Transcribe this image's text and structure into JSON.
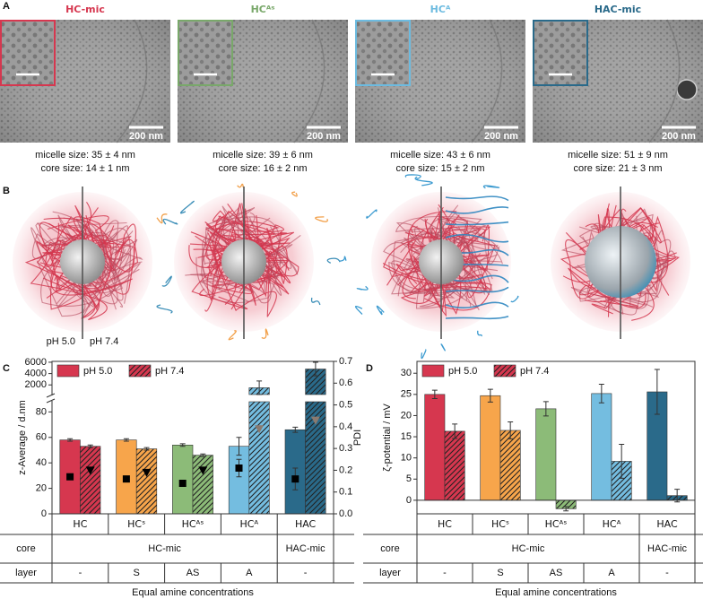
{
  "panel_a": {
    "label": "A",
    "items": [
      {
        "title": "HC-mic",
        "color": "#d6374f",
        "scale_bar": "200 nm",
        "micelle_size": "micelle size: 35 ± 4 nm",
        "core_size": "core size: 14 ± 1 nm"
      },
      {
        "title": "HCᴬˢ",
        "color": "#79a86a",
        "scale_bar": "200 nm",
        "micelle_size": "micelle size: 39 ± 6 nm",
        "core_size": "core size: 16 ± 2 nm"
      },
      {
        "title": "HCᴬ",
        "color": "#6cbbe0",
        "scale_bar": "200 nm",
        "micelle_size": "micelle size: 43 ± 6 nm",
        "core_size": "core size: 15 ± 2 nm"
      },
      {
        "title": "HAC-mic",
        "color": "#2a6a8a",
        "scale_bar": "200 nm",
        "micelle_size": "micelle size: 51 ± 9 nm",
        "core_size": "core size: 21 ± 3 nm"
      }
    ]
  },
  "panel_b": {
    "label": "B",
    "left_label": "pH 5.0",
    "right_label": "pH 7.4"
  },
  "chart_data": [
    {
      "label": "C",
      "type": "bar",
      "y_label": "z-Average / d.nm",
      "y2_label": "PDI",
      "categories": [
        "HC",
        "HCˢ",
        "HCᴬˢ",
        "HCᴬ",
        "HAC"
      ],
      "colors": [
        "#d6374f",
        "#f7a54b",
        "#8cbb78",
        "#74bde0",
        "#2a6a8a"
      ],
      "ylim": [
        0,
        6150
      ],
      "ybreak": [
        88,
        300
      ],
      "yticks": [
        0,
        20,
        40,
        60,
        80,
        2000,
        4000,
        6000
      ],
      "y2lim": [
        0,
        0.7
      ],
      "y2ticks": [
        {
          "value": 0,
          "label": "0.0"
        },
        0.1,
        0.2,
        0.3,
        0.4,
        0.5,
        0.6,
        0.7
      ],
      "series": [
        {
          "name": "pH 5.0",
          "values": [
            58,
            58,
            54,
            53,
            66
          ],
          "errors": [
            1,
            1,
            1,
            7,
            2
          ]
        },
        {
          "name": "pH 7.4",
          "hatch": true,
          "values": [
            53,
            51,
            46,
            1500,
            4800
          ],
          "errors": [
            1,
            1,
            1,
            1200,
            1200
          ]
        },
        {
          "axis": "y2",
          "marker": "square",
          "colors": [
            "#000000",
            "#000000",
            "#000000",
            "#000000",
            "#000000"
          ],
          "values": [
            0.17,
            0.16,
            0.14,
            0.21,
            0.16
          ],
          "errors": [
            0.01,
            0.01,
            0.01,
            0.04,
            0.05
          ]
        },
        {
          "axis": "y2",
          "marker": "triangle",
          "colors": [
            "#000000",
            "#000000",
            "#000000",
            "#8a7a70",
            "#8a7a70"
          ],
          "values": [
            0.2,
            0.19,
            0.2,
            0.39,
            0.43
          ]
        }
      ],
      "table": {
        "row_labels": [
          "core",
          "layer"
        ],
        "core": [
          {
            "text": "HC-mic",
            "span": 4
          },
          {
            "text": "HAC-mic",
            "span": 1
          }
        ],
        "layer": [
          "-",
          "S",
          "AS",
          "A",
          "-"
        ]
      },
      "x_label": "Equal amine concentrations"
    },
    {
      "label": "D",
      "type": "bar",
      "y_label": "ζ-potential / mV",
      "categories": [
        "HC",
        "HCˢ",
        "HCᴬˢ",
        "HCᴬ",
        "HAC"
      ],
      "colors": [
        "#d6374f",
        "#f7a54b",
        "#8cbb78",
        "#74bde0",
        "#2a6a8a"
      ],
      "ylim": [
        -3.2,
        32.8
      ],
      "yticks": [
        0,
        5,
        10,
        15,
        20,
        25,
        30
      ],
      "series": [
        {
          "name": "pH 5.0",
          "values": [
            25.0,
            24.7,
            21.6,
            25.2,
            25.6
          ],
          "errors": [
            1.0,
            1.5,
            1.7,
            2.2,
            5.3
          ]
        },
        {
          "name": "pH 7.4",
          "hatch": true,
          "values": [
            16.3,
            16.5,
            -2.0,
            9.2,
            1.1
          ],
          "errors": [
            1.7,
            2.0,
            0.5,
            4.0,
            1.5
          ]
        }
      ],
      "table": {
        "row_labels": [
          "core",
          "layer"
        ],
        "core": [
          {
            "text": "HC-mic",
            "span": 4
          },
          {
            "text": "HAC-mic",
            "span": 1
          }
        ],
        "layer": [
          "-",
          "S",
          "AS",
          "A",
          "-"
        ]
      },
      "x_label": "Equal amine concentrations"
    }
  ]
}
